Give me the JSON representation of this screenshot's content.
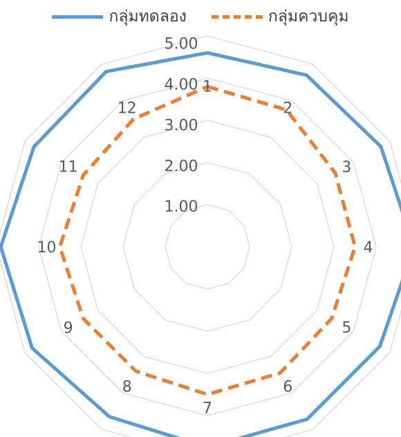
{
  "chart_data": {
    "type": "radar",
    "categories": [
      "1",
      "2",
      "3",
      "4",
      "5",
      "6",
      "7",
      "8",
      "9",
      "10",
      "11",
      "12"
    ],
    "series": [
      {
        "name": "กลุ่มทดลอง",
        "color": "#5b9bd5",
        "style": "solid",
        "values": [
          4.6,
          4.7,
          4.75,
          4.9,
          4.72,
          4.72,
          4.75,
          4.65,
          4.8,
          4.9,
          4.75,
          4.8
        ]
      },
      {
        "name": "กลุ่มควบคุม",
        "color": "#ed7d31",
        "style": "dashed",
        "values": [
          3.8,
          3.75,
          3.5,
          3.5,
          3.4,
          3.45,
          3.5,
          3.4,
          3.4,
          3.5,
          3.4,
          3.5
        ]
      }
    ],
    "tick_labels": [
      "1.00",
      "2.00",
      "3.00",
      "4.00",
      "5.00"
    ],
    "rlim": [
      0,
      5
    ],
    "grid": true,
    "legend_position": "top"
  }
}
